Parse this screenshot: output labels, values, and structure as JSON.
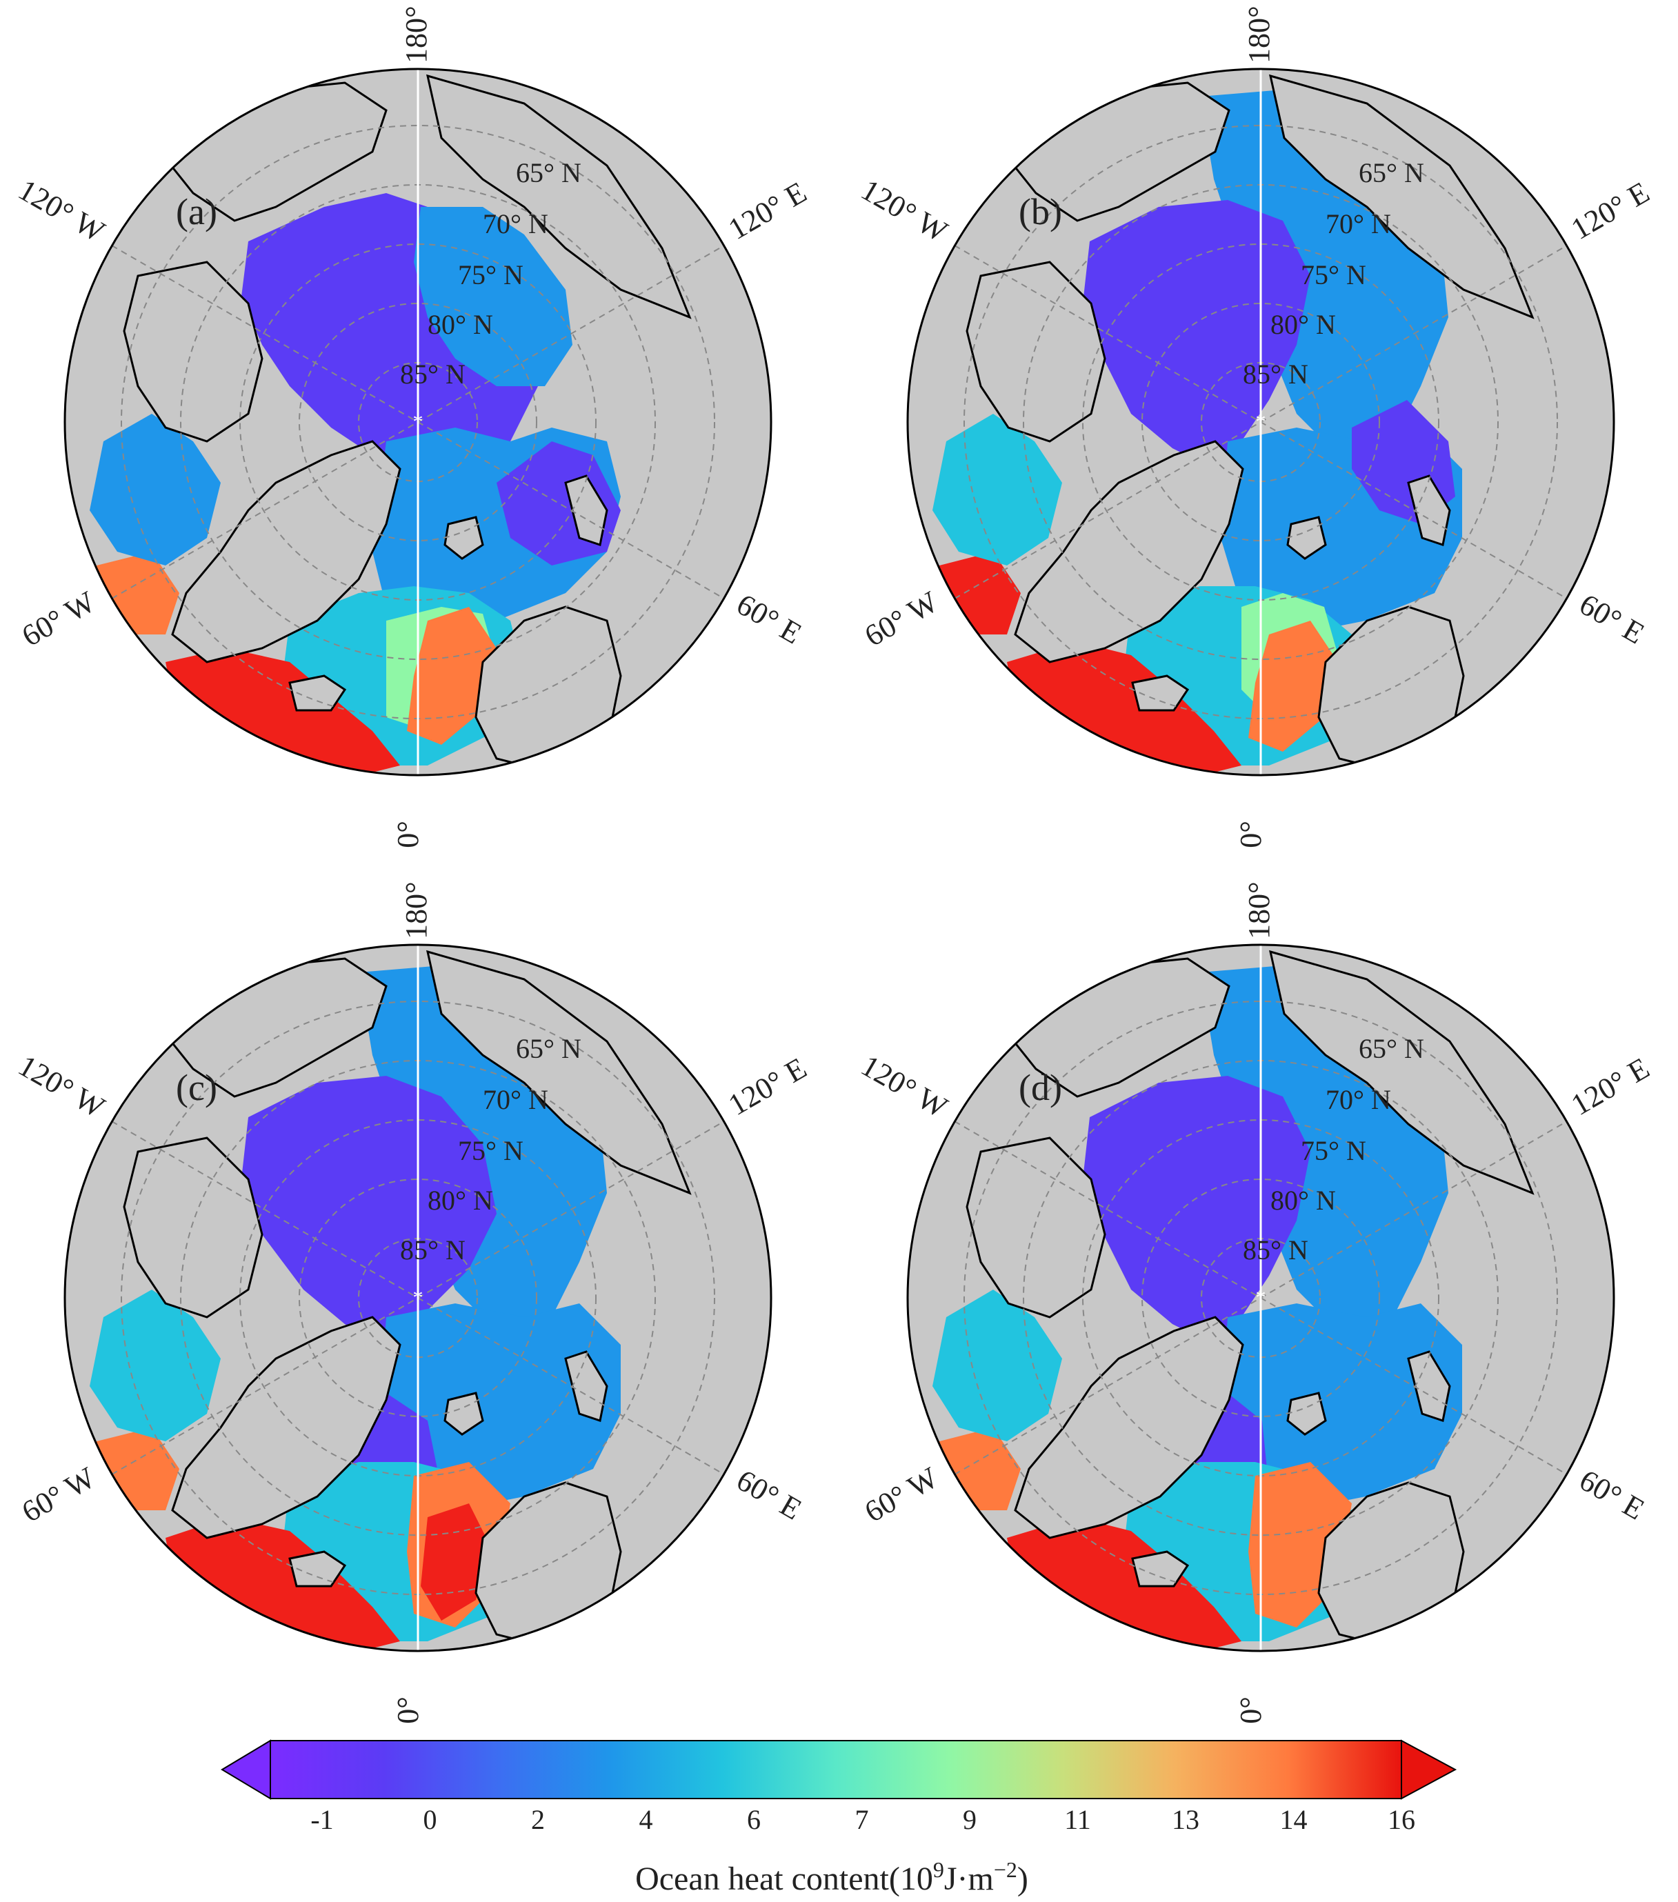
{
  "panels": [
    {
      "id": "a",
      "label": "(a)"
    },
    {
      "id": "b",
      "label": "(b)"
    },
    {
      "id": "c",
      "label": "(c)"
    },
    {
      "id": "d",
      "label": "(d)"
    }
  ],
  "meridian_labels": {
    "top": "180°",
    "bottom": "0°",
    "upper_left": "120° W",
    "upper_right": "120° E",
    "lower_left": "60° W",
    "lower_right": "60° E"
  },
  "latitude_labels": [
    "65° N",
    "70° N",
    "75° N",
    "80° N",
    "85° N"
  ],
  "colorbar": {
    "title_prefix": "Ocean heat content(10",
    "title_exp1": "9",
    "title_mid": "J·m",
    "title_exp2": "−2",
    "title_suffix": ")",
    "tick_labels": [
      "-1",
      "0",
      "2",
      "4",
      "6",
      "7",
      "9",
      "11",
      "13",
      "14",
      "16"
    ],
    "colors": [
      "#7b2cff",
      "#5b3cf5",
      "#3d6df2",
      "#1f96ea",
      "#22c4df",
      "#5ae8c8",
      "#8ff7a6",
      "#c8e07c",
      "#f5b25f",
      "#ff7a3e",
      "#f23a1d",
      "#e8130e"
    ]
  },
  "colors": {
    "land": "#c8c8c8",
    "coast": "#000000",
    "ocean_low": "#5b3cf5",
    "ocean_mid": "#1f96ea",
    "ocean_warm": "#ff7a3e",
    "ocean_hot": "#f0201a",
    "grid": "#888888"
  }
}
